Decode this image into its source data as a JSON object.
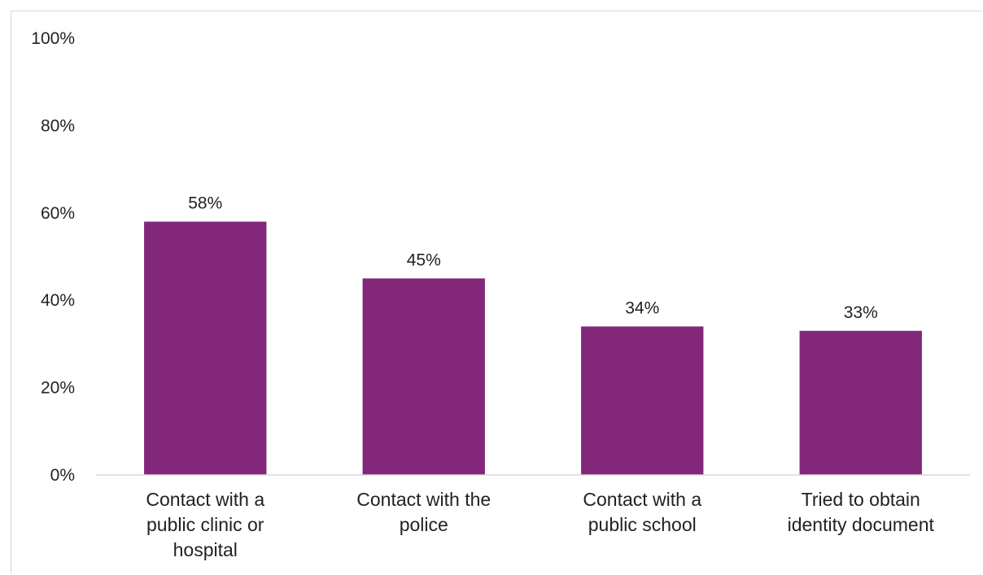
{
  "chart_data": {
    "type": "bar",
    "categories": [
      [
        "Contact with a",
        "public clinic or",
        "hospital"
      ],
      [
        "Contact with the",
        "police"
      ],
      [
        "Contact with a",
        "public school"
      ],
      [
        "Tried to obtain",
        "identity document"
      ]
    ],
    "values": [
      58,
      45,
      34,
      33
    ],
    "data_labels": [
      "58%",
      "45%",
      "34%",
      "33%"
    ],
    "ylim": [
      0,
      100
    ],
    "yticks": [
      0,
      20,
      40,
      60,
      80,
      100
    ],
    "ytick_labels": [
      "0%",
      "20%",
      "40%",
      "60%",
      "80%",
      "100%"
    ],
    "bar_color": "#83277A",
    "grid": false,
    "legend": "none"
  }
}
